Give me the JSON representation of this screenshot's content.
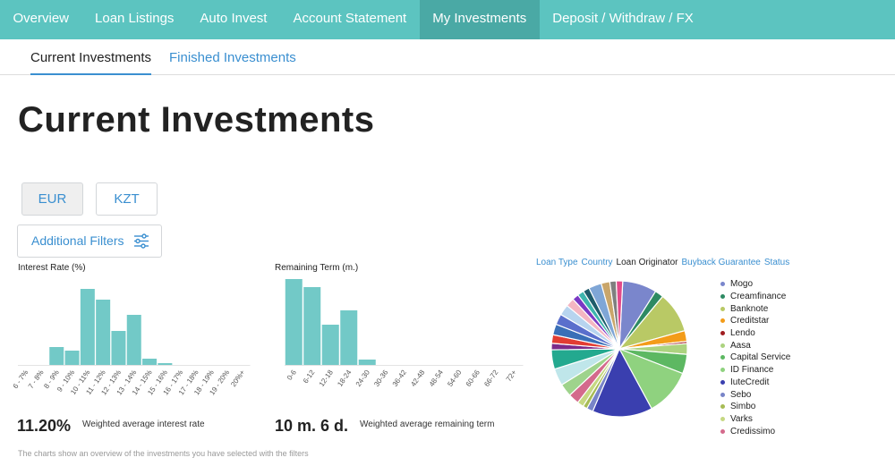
{
  "topnav": {
    "items": [
      {
        "label": "Overview"
      },
      {
        "label": "Loan Listings"
      },
      {
        "label": "Auto Invest"
      },
      {
        "label": "Account Statement"
      },
      {
        "label": "My Investments"
      },
      {
        "label": "Deposit / Withdraw / FX"
      }
    ],
    "active_index": 4
  },
  "subnav": {
    "current": "Current Investments",
    "finished": "Finished Investments"
  },
  "page_title": "Current Investments",
  "currency": {
    "eur": "EUR",
    "kzt": "KZT"
  },
  "filters_label": "Additional Filters",
  "colors": {
    "nav": "#5cc4c0",
    "nav_active": "#4aa9a5",
    "bar": "#72c9c7",
    "link": "#3a8fd0"
  },
  "chart_data": [
    {
      "type": "bar",
      "title": "Interest Rate (%)",
      "categories": [
        "6 - 7%",
        "7 - 8%",
        "8 - 9%",
        "9 - 10%",
        "10 - 11%",
        "11 - 12%",
        "12 - 13%",
        "13 - 14%",
        "14 - 15%",
        "15 - 16%",
        "16 - 17%",
        "17 - 18%",
        "18 - 19%",
        "19 - 20%",
        "20%+"
      ],
      "values": [
        0,
        0,
        20,
        16,
        85,
        73,
        38,
        56,
        7,
        2,
        0,
        0,
        0,
        0,
        0
      ],
      "ylim": [
        0,
        100
      ],
      "summary_value": "11.20%",
      "summary_label": "Weighted average interest rate"
    },
    {
      "type": "bar",
      "title": "Remaining Term (m.)",
      "categories": [
        "0-6",
        "6-12",
        "12-18",
        "18-24",
        "24-30",
        "30-36",
        "36-42",
        "42-48",
        "48-54",
        "54-60",
        "60-66",
        "66-72",
        "72+"
      ],
      "values": [
        96,
        87,
        45,
        61,
        6,
        0,
        0,
        0,
        0,
        0,
        0,
        0,
        0
      ],
      "ylim": [
        0,
        100
      ],
      "summary_value": "10 m. 6 d.",
      "summary_label": "Weighted average remaining term"
    },
    {
      "type": "pie",
      "tabs": [
        "Loan Type",
        "Country",
        "Loan Originator",
        "Buyback Guarantee",
        "Status"
      ],
      "selected_tab": "Loan Originator",
      "slices": [
        {
          "label": "Mogo",
          "value": 8.0,
          "color": "#7a86cc"
        },
        {
          "label": "Creamfinance",
          "value": 2.0,
          "color": "#2e8a63"
        },
        {
          "label": "Banknote",
          "value": 9.5,
          "color": "#b9c965"
        },
        {
          "label": "Creditstar",
          "value": 2.5,
          "color": "#f39c19"
        },
        {
          "label": "Lendo",
          "value": 0.5,
          "color": "#a01d20"
        },
        {
          "label": "Aasa",
          "value": 2.5,
          "color": "#acd37f"
        },
        {
          "label": "Capital Service",
          "value": 4.5,
          "color": "#5db862"
        },
        {
          "label": "ID Finance",
          "value": 11.0,
          "color": "#8fd27f"
        },
        {
          "label": "IuteCredit",
          "value": 14.0,
          "color": "#3a3faf"
        },
        {
          "label": "Sebo",
          "value": 1.5,
          "color": "#7884c8"
        },
        {
          "label": "Simbo",
          "value": 1.0,
          "color": "#a7bc55"
        },
        {
          "label": "Varks",
          "value": 1.5,
          "color": "#c6d882"
        },
        {
          "label": "Credissimo",
          "value": 2.5,
          "color": "#d46a8c"
        },
        {
          "label": "",
          "value": 3.0,
          "color": "#9ed38c"
        },
        {
          "label": "",
          "value": 4.0,
          "color": "#bfe6ea"
        },
        {
          "label": "",
          "value": 4.5,
          "color": "#23a98f"
        },
        {
          "label": "",
          "value": 1.5,
          "color": "#7b2b8a"
        },
        {
          "label": "",
          "value": 2.0,
          "color": "#e23d33"
        },
        {
          "label": "",
          "value": 2.5,
          "color": "#3a6fb7"
        },
        {
          "label": "",
          "value": 2.5,
          "color": "#5a6fcc"
        },
        {
          "label": "",
          "value": 2.5,
          "color": "#b7d4ef"
        },
        {
          "label": "",
          "value": 2.0,
          "color": "#f4b6c2"
        },
        {
          "label": "",
          "value": 1.5,
          "color": "#7a39c4"
        },
        {
          "label": "",
          "value": 1.5,
          "color": "#3eb5ae"
        },
        {
          "label": "",
          "value": 1.5,
          "color": "#1e5c6b"
        },
        {
          "label": "",
          "value": 3.0,
          "color": "#7fa6d6"
        },
        {
          "label": "",
          "value": 2.0,
          "color": "#c9a66b"
        },
        {
          "label": "",
          "value": 1.5,
          "color": "#7f7f7f"
        },
        {
          "label": "",
          "value": 1.5,
          "color": "#e34a8a"
        }
      ]
    }
  ],
  "footnote": "The charts show an overview of the investments you have selected with the filters"
}
